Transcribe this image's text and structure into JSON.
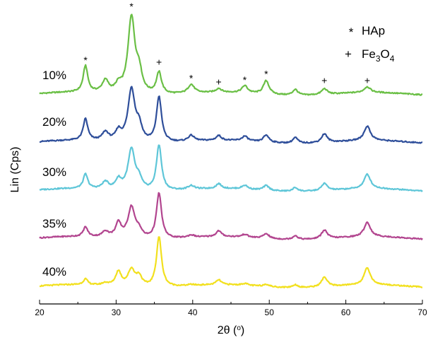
{
  "chart_data": {
    "type": "line",
    "xlabel": "2θ (o)",
    "xlabel_main": "2θ (",
    "xlabel_unit": "o",
    "xlabel_close": ")",
    "ylabel": "Lin (Cps)",
    "xlim": [
      20,
      70
    ],
    "xticks": [
      "20",
      "30",
      "40",
      "50",
      "60",
      "70"
    ],
    "y_ticks_shown": false,
    "grid": false,
    "legend": {
      "placement": "top-right",
      "items": [
        {
          "symbol": "*",
          "label": "HAp"
        },
        {
          "symbol": "+",
          "label_main": "Fe",
          "sub1": "3",
          "mid": "O",
          "sub2": "4"
        }
      ]
    },
    "peak_markers": [
      {
        "x": 26.0,
        "symbol": "*"
      },
      {
        "x": 32.0,
        "symbol": "*"
      },
      {
        "x": 35.6,
        "symbol": "+"
      },
      {
        "x": 39.8,
        "symbol": "*"
      },
      {
        "x": 43.4,
        "symbol": "+"
      },
      {
        "x": 46.8,
        "symbol": "*"
      },
      {
        "x": 49.6,
        "symbol": "*"
      },
      {
        "x": 57.2,
        "symbol": "+"
      },
      {
        "x": 62.8,
        "symbol": "+"
      }
    ],
    "peaks": [
      {
        "x": 26.0,
        "w": 0.35
      },
      {
        "x": 28.6,
        "w": 0.5
      },
      {
        "x": 30.3,
        "w": 0.45
      },
      {
        "x": 32.0,
        "w": 0.55
      },
      {
        "x": 33.0,
        "w": 0.45
      },
      {
        "x": 35.6,
        "w": 0.4
      },
      {
        "x": 39.8,
        "w": 0.5
      },
      {
        "x": 43.4,
        "w": 0.4
      },
      {
        "x": 46.8,
        "w": 0.45
      },
      {
        "x": 49.6,
        "w": 0.45
      },
      {
        "x": 53.4,
        "w": 0.4
      },
      {
        "x": 57.2,
        "w": 0.45
      },
      {
        "x": 62.8,
        "w": 0.5
      }
    ],
    "series": [
      {
        "name": "10%",
        "color": "#6abf45",
        "offset": 4.0,
        "amplitudes": [
          0.55,
          0.25,
          0.15,
          1.6,
          0.4,
          0.45,
          0.18,
          0.08,
          0.15,
          0.28,
          0.12,
          0.12,
          0.12
        ]
      },
      {
        "name": "20%",
        "color": "#2e4e9a",
        "offset": 3.0,
        "amplitudes": [
          0.45,
          0.18,
          0.2,
          1.1,
          0.3,
          0.95,
          0.12,
          0.1,
          0.1,
          0.15,
          0.12,
          0.18,
          0.3
        ]
      },
      {
        "name": "30%",
        "color": "#5ec6d8",
        "offset": 2.0,
        "amplitudes": [
          0.3,
          0.15,
          0.2,
          0.85,
          0.2,
          0.95,
          0.08,
          0.1,
          0.08,
          0.1,
          0.08,
          0.15,
          0.3
        ]
      },
      {
        "name": "35%",
        "color": "#b2458f",
        "offset": 1.0,
        "amplitudes": [
          0.2,
          0.12,
          0.3,
          0.65,
          0.15,
          0.95,
          0.05,
          0.12,
          0.06,
          0.1,
          0.08,
          0.18,
          0.3
        ]
      },
      {
        "name": "40%",
        "color": "#f2e01e",
        "offset": 0.0,
        "amplitudes": [
          0.12,
          0.05,
          0.3,
          0.35,
          0.2,
          1.05,
          0.02,
          0.1,
          0.04,
          0.05,
          0.06,
          0.2,
          0.35
        ]
      }
    ]
  }
}
